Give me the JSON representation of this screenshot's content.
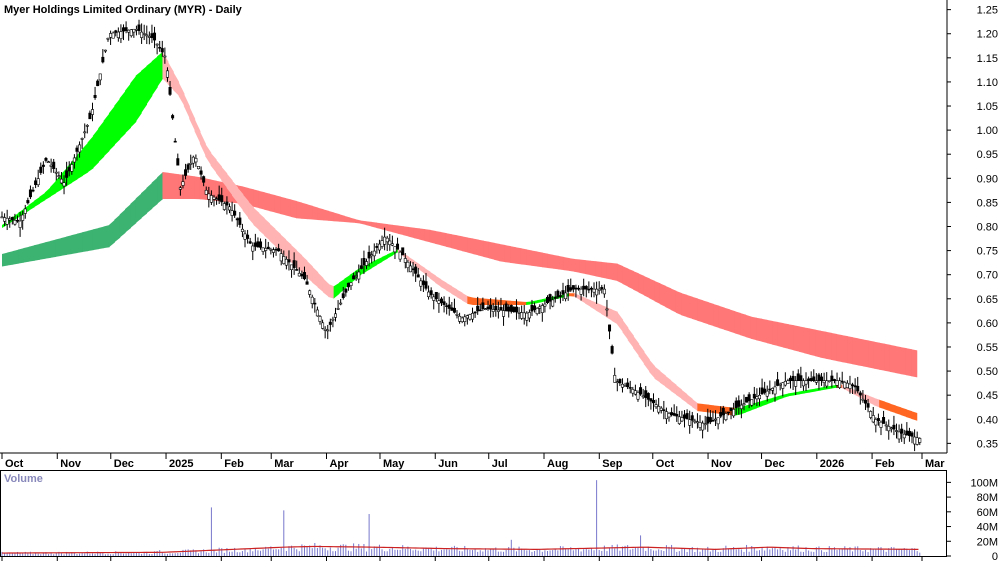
{
  "chart_data": {
    "type": "candlestick",
    "title": "Myer Holdings Limited Ordinary (MYR) - Daily",
    "price_axis": {
      "ticks": [
        "1.25",
        "1.20",
        "1.15",
        "1.10",
        "1.05",
        "1.00",
        "0.95",
        "0.90",
        "0.85",
        "0.80",
        "0.75",
        "0.70",
        "0.65",
        "0.60",
        "0.55",
        "0.50",
        "0.45",
        "0.40",
        "0.35"
      ],
      "ylim": [
        0.33,
        1.27
      ]
    },
    "x_axis": {
      "labels": [
        "Oct",
        "Nov",
        "Dec",
        "2025",
        "Feb",
        "Mar",
        "Apr",
        "May",
        "Jun",
        "Jul",
        "Aug",
        "Sep",
        "Oct",
        "Nov",
        "Dec",
        "2026",
        "Feb",
        "Mar"
      ],
      "label_days": [
        0,
        31,
        61,
        92,
        123,
        151,
        182,
        212,
        243,
        273,
        304,
        335,
        365,
        396,
        426,
        457,
        488,
        516
      ],
      "start": "2024-09-24",
      "end": "2026-03-02"
    },
    "price_keypoints": [
      [
        0,
        0.82
      ],
      [
        10,
        0.81
      ],
      [
        25,
        0.94
      ],
      [
        35,
        0.89
      ],
      [
        50,
        1.03
      ],
      [
        60,
        1.2
      ],
      [
        75,
        1.21
      ],
      [
        85,
        1.19
      ],
      [
        92,
        1.15
      ],
      [
        100,
        0.88
      ],
      [
        108,
        0.95
      ],
      [
        115,
        0.87
      ],
      [
        128,
        0.84
      ],
      [
        140,
        0.76
      ],
      [
        155,
        0.75
      ],
      [
        170,
        0.69
      ],
      [
        182,
        0.58
      ],
      [
        195,
        0.68
      ],
      [
        215,
        0.78
      ],
      [
        225,
        0.74
      ],
      [
        240,
        0.66
      ],
      [
        258,
        0.61
      ],
      [
        270,
        0.63
      ],
      [
        295,
        0.62
      ],
      [
        320,
        0.67
      ],
      [
        338,
        0.67
      ],
      [
        344,
        0.48
      ],
      [
        355,
        0.46
      ],
      [
        375,
        0.41
      ],
      [
        395,
        0.39
      ],
      [
        415,
        0.43
      ],
      [
        440,
        0.48
      ],
      [
        470,
        0.48
      ],
      [
        478,
        0.47
      ],
      [
        490,
        0.4
      ],
      [
        505,
        0.37
      ],
      [
        515,
        0.36
      ]
    ],
    "short_term_band_keypoints": [
      [
        0,
        0.8,
        0.8
      ],
      [
        25,
        0.87,
        0.86
      ],
      [
        50,
        0.98,
        0.92
      ],
      [
        75,
        1.11,
        1.02
      ],
      [
        90,
        1.16,
        1.11
      ],
      [
        100,
        1.09,
        1.07
      ],
      [
        115,
        0.96,
        0.94
      ],
      [
        140,
        0.84,
        0.81
      ],
      [
        170,
        0.73,
        0.7
      ],
      [
        185,
        0.67,
        0.65
      ],
      [
        200,
        0.71,
        0.7
      ],
      [
        222,
        0.75,
        0.75
      ],
      [
        245,
        0.69,
        0.68
      ],
      [
        262,
        0.65,
        0.64
      ],
      [
        295,
        0.64,
        0.64
      ],
      [
        320,
        0.66,
        0.66
      ],
      [
        345,
        0.62,
        0.6
      ],
      [
        365,
        0.51,
        0.49
      ],
      [
        390,
        0.43,
        0.42
      ],
      [
        412,
        0.42,
        0.41
      ],
      [
        440,
        0.45,
        0.45
      ],
      [
        470,
        0.47,
        0.47
      ],
      [
        490,
        0.44,
        0.43
      ],
      [
        513,
        0.41,
        0.4
      ]
    ],
    "long_term_band_keypoints": [
      [
        0,
        0.74,
        0.72
      ],
      [
        30,
        0.77,
        0.74
      ],
      [
        60,
        0.8,
        0.76
      ],
      [
        90,
        0.91,
        0.86
      ],
      [
        110,
        0.9,
        0.86
      ],
      [
        135,
        0.88,
        0.85
      ],
      [
        165,
        0.85,
        0.82
      ],
      [
        200,
        0.81,
        0.81
      ],
      [
        240,
        0.79,
        0.77
      ],
      [
        280,
        0.76,
        0.73
      ],
      [
        320,
        0.73,
        0.71
      ],
      [
        345,
        0.72,
        0.69
      ],
      [
        380,
        0.66,
        0.62
      ],
      [
        420,
        0.61,
        0.57
      ],
      [
        460,
        0.58,
        0.53
      ],
      [
        513,
        0.54,
        0.49
      ]
    ],
    "volume": {
      "label": "Volume",
      "ticks": [
        "100M",
        "80M",
        "60M",
        "40M",
        "20M",
        "0"
      ],
      "ylim": [
        0,
        110
      ],
      "spikes": [
        [
          28,
          5
        ],
        [
          89,
          8
        ],
        [
          118,
          66
        ],
        [
          137,
          10
        ],
        [
          147,
          9
        ],
        [
          158,
          62
        ],
        [
          206,
          57
        ],
        [
          257,
          7
        ],
        [
          261,
          9
        ],
        [
          286,
          22
        ],
        [
          334,
          103
        ],
        [
          342,
          15
        ],
        [
          358,
          28
        ],
        [
          406,
          14
        ],
        [
          458,
          13
        ],
        [
          489,
          10
        ],
        [
          509,
          8
        ]
      ],
      "average_keypoints": [
        [
          0,
          4
        ],
        [
          90,
          5
        ],
        [
          120,
          8
        ],
        [
          158,
          12
        ],
        [
          175,
          13
        ],
        [
          208,
          12
        ],
        [
          250,
          10
        ],
        [
          300,
          9
        ],
        [
          340,
          11
        ],
        [
          360,
          12
        ],
        [
          400,
          9
        ],
        [
          430,
          12
        ],
        [
          455,
          10
        ],
        [
          513,
          9
        ]
      ]
    },
    "colors": {
      "candle": "#000000",
      "short_band_up": "#00ff00",
      "short_band_down": "#ff6622",
      "short_band_down_weak": "#ffb3b3",
      "long_band_up": "#3cb371",
      "long_band_down": "#ff7777",
      "volume_bar": "#7777cc",
      "volume_average": "#cc2222",
      "axis_text": "#000000",
      "grid": "#aaaaaa",
      "volume_label": "#8888bb"
    },
    "legend": "none",
    "grid": "off"
  }
}
